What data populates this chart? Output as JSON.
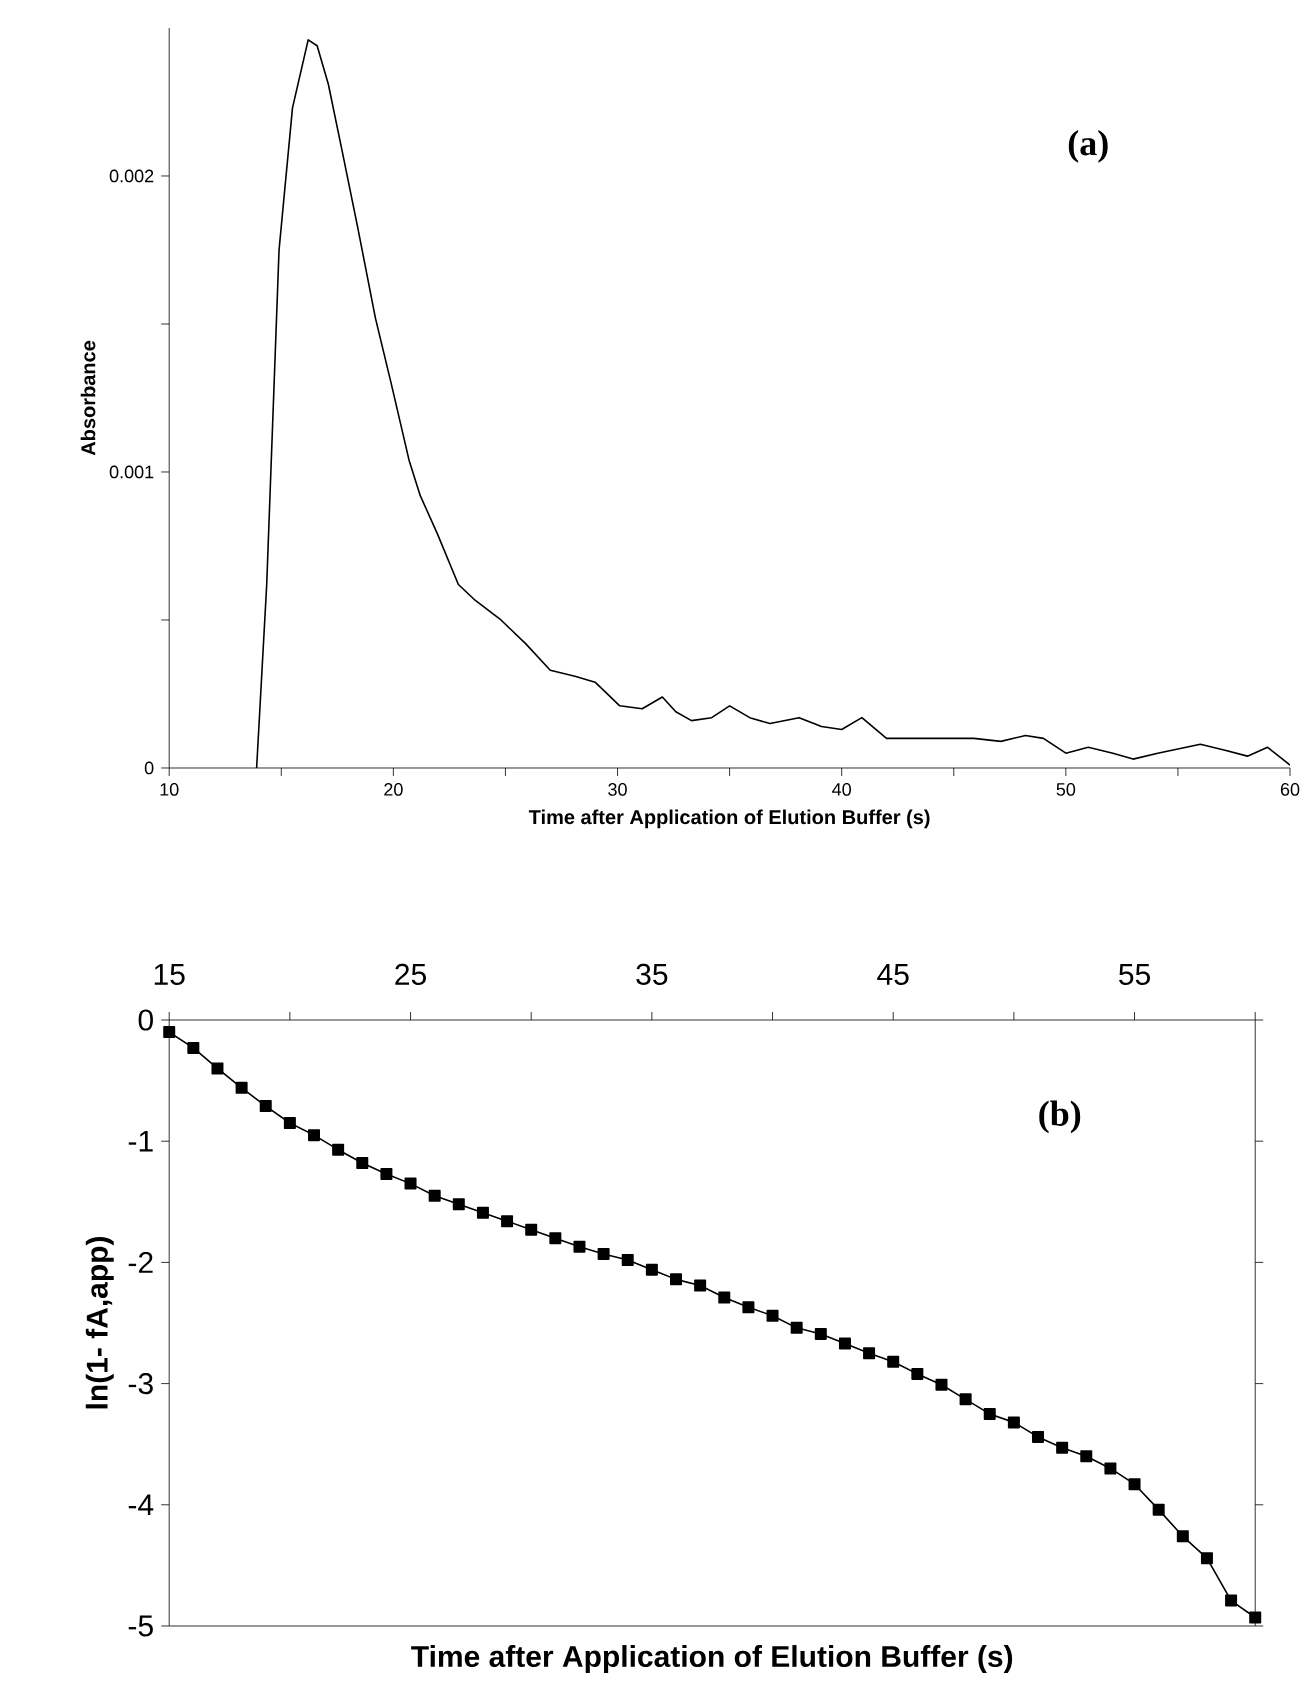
{
  "chart_data": [
    {
      "type": "line",
      "xlabel": "Time after Application of Elution Buffer (s)",
      "ylabel": "Absorbance",
      "annotations": [
        "(a)"
      ],
      "color": "#000000",
      "marker": "none",
      "line_style": "solid",
      "x": [
        13.9,
        14.35,
        14.9,
        15.5,
        16.2,
        16.6,
        17.1,
        17.7,
        18.4,
        19.2,
        19.9,
        20.7,
        21.2,
        21.97,
        22.9,
        23.6,
        24.8,
        25.9,
        27.0,
        28.1,
        29.0,
        30.1,
        31.1,
        32.0,
        32.6,
        33.3,
        34.2,
        35.0,
        35.9,
        36.8,
        38.1,
        39.1,
        40.0,
        40.9,
        42.0,
        43.3,
        45.9,
        47.1,
        48.2,
        49.0,
        50.0,
        51.0,
        52.1,
        53.0,
        54.1,
        56.0,
        57.1,
        58.1,
        59.0,
        60.0
      ],
      "values": [
        0,
        0.00062,
        0.00175,
        0.00223,
        0.00246,
        0.00244,
        0.00231,
        0.00209,
        0.00183,
        0.00152,
        0.0013,
        0.00104,
        0.00092,
        0.00079,
        0.00062,
        0.00057,
        0.0005,
        0.00042,
        0.00033,
        0.00031,
        0.00029,
        0.00021,
        0.0002,
        0.00024,
        0.00019,
        0.00016,
        0.00017,
        0.00021,
        0.00017,
        0.00015,
        0.00017,
        0.00014,
        0.00013,
        0.00017,
        0.0001,
        0.0001,
        0.0001,
        9e-05,
        0.00011,
        0.0001,
        5e-05,
        7e-05,
        5e-05,
        3e-05,
        5e-05,
        8e-05,
        6e-05,
        4e-05,
        7e-05,
        1e-05
      ],
      "xlim": [
        10,
        60
      ],
      "xticks": [
        10,
        {
          "value": 15,
          "label": null
        },
        20,
        {
          "value": 25,
          "label": null
        },
        30,
        {
          "value": 35,
          "label": null
        },
        40,
        {
          "value": 45,
          "label": null
        },
        50,
        {
          "value": 55,
          "label": null
        },
        60
      ],
      "ylim": [
        0,
        0.0025
      ],
      "yticks": [
        0,
        {
          "value": 0.0005,
          "label": null
        },
        0.001,
        {
          "value": 0.0015,
          "label": null
        },
        0.002
      ]
    },
    {
      "type": "line",
      "xlabel": "Time after Application of Elution Buffer (s)",
      "ylabel": "ln(1- fA,app)",
      "annotations": [
        "(b)"
      ],
      "color": "#000000",
      "marker": "square",
      "line_style": "solid",
      "x": [
        15,
        16,
        17,
        18,
        19,
        20,
        21,
        22,
        23,
        24,
        25,
        26,
        27,
        28,
        29,
        30,
        31,
        32,
        33,
        34,
        35,
        36,
        37,
        38,
        39,
        40,
        41,
        42,
        43,
        44,
        45,
        46,
        47,
        48,
        49,
        50,
        51,
        52,
        53,
        54,
        55,
        56,
        57,
        58,
        59,
        60
      ],
      "values": [
        -0.1,
        -0.23,
        -0.4,
        -0.56,
        -0.71,
        -0.85,
        -0.95,
        -1.07,
        -1.18,
        -1.27,
        -1.35,
        -1.45,
        -1.52,
        -1.59,
        -1.66,
        -1.73,
        -1.8,
        -1.87,
        -1.93,
        -1.98,
        -2.06,
        -2.14,
        -2.19,
        -2.29,
        -2.37,
        -2.44,
        -2.54,
        -2.59,
        -2.67,
        -2.75,
        -2.82,
        -2.92,
        -3.01,
        -3.13,
        -3.25,
        -3.32,
        -3.44,
        -3.53,
        -3.6,
        -3.7,
        -3.83,
        -4.04,
        -4.26,
        -4.44,
        -4.79,
        -4.93
      ],
      "xlim": [
        15,
        60
      ],
      "xticks": [
        15,
        {
          "value": 20,
          "label": null
        },
        25,
        {
          "value": 30,
          "label": null
        },
        35,
        {
          "value": 40,
          "label": null
        },
        45,
        {
          "value": 50,
          "label": null
        },
        55,
        {
          "value": 60,
          "label": null
        }
      ],
      "ylim": [
        -5,
        0
      ],
      "yticks": [
        -5,
        -4,
        -3,
        -2,
        -1,
        0
      ]
    }
  ]
}
